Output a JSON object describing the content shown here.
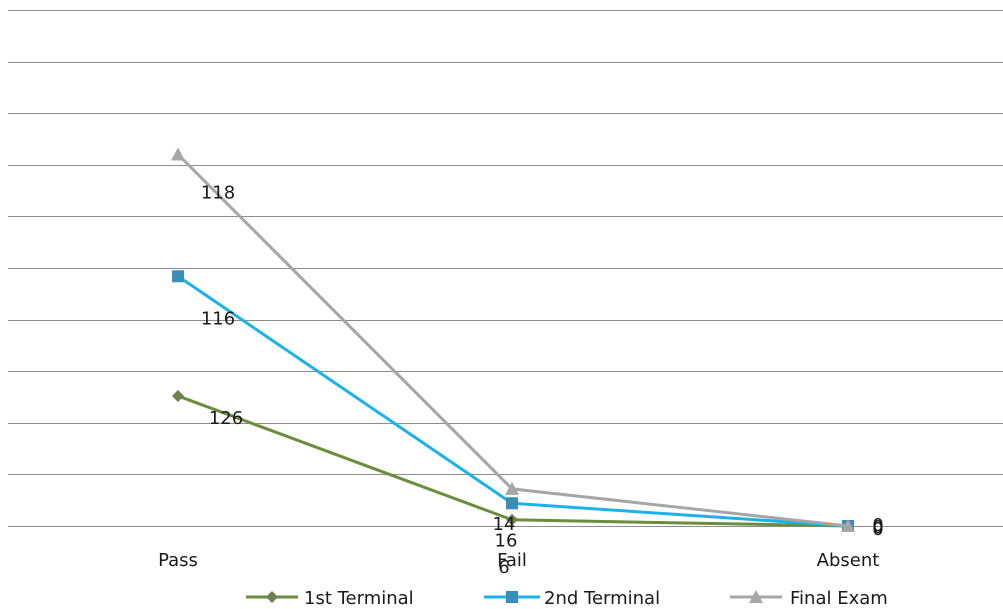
{
  "chart_data": {
    "type": "line",
    "categories": [
      "Pass",
      "Fail",
      "Absent"
    ],
    "series": [
      {
        "name": "1st Terminal",
        "values": [
          126,
          6,
          0
        ],
        "labels": [
          "126",
          "6",
          "0"
        ],
        "color": "#6b8e3e",
        "marker": "diamond",
        "marker_color": "#6e8050"
      },
      {
        "name": "2nd Terminal",
        "values": [
          116,
          16,
          0
        ],
        "labels": [
          "116",
          "16",
          "0"
        ],
        "color": "#1ab2e8",
        "marker": "square",
        "marker_color": "#3a8db5"
      },
      {
        "name": "Final Exam",
        "values": [
          118,
          14,
          0
        ],
        "labels": [
          "118",
          "14",
          "0"
        ],
        "color": "#a6a6a6",
        "marker": "triangle",
        "marker_color": "#a6a6a6"
      }
    ],
    "stacked": true,
    "ylim": [
      0,
      500
    ],
    "gridlines": true,
    "legend_position": "bottom"
  }
}
